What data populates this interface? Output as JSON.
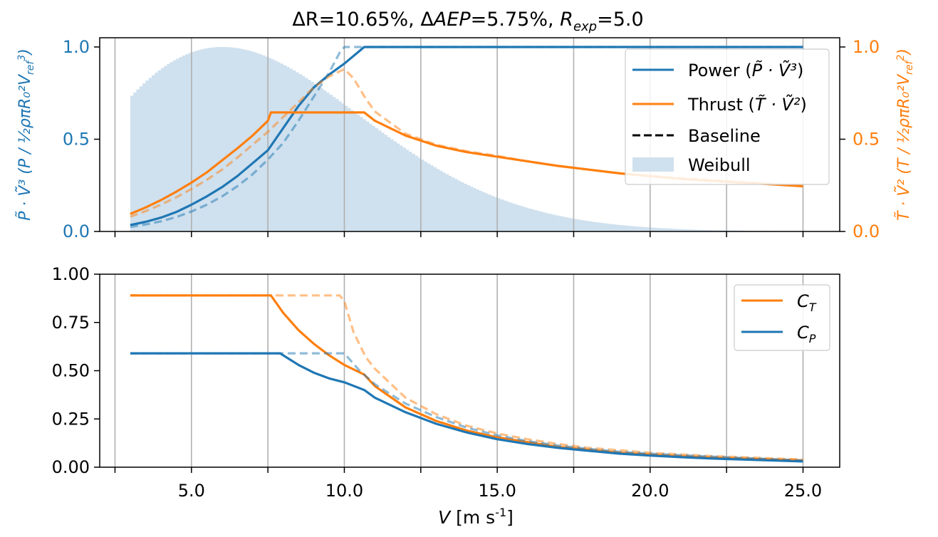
{
  "figure": {
    "title": {
      "delta_r_symbol": "ΔR",
      "delta_r_value": "=10.65%, ",
      "delta_aep_symbol": "Δ",
      "delta_aep_italic": "AEP",
      "delta_aep_value": "=5.75%, ",
      "rexp_base": "R",
      "rexp_sub": "exp",
      "rexp_value": "=5.0"
    },
    "xlabel_var": "V",
    "xlabel_unit": "[m s",
    "xlabel_exp": "-1",
    "xlabel_close": "]"
  },
  "colors": {
    "power": "#1f77b4",
    "thrust": "#ff7f0e",
    "weibull": "#cfe0ee",
    "grid": "#b0b0b0",
    "axis": "#000000"
  },
  "chart_data": [
    {
      "type": "line",
      "panel": "top",
      "ylabel_left": "P̃ · Ṽ³  (P / ½ρπR₀²V_ref³)",
      "ylabel_right": "T̃ · Ṽ²  (T / ½ρπR₀²V_ref²)",
      "xlim": [
        2.0,
        26.2
      ],
      "ylim": [
        0,
        1.05
      ],
      "xticks": [
        2.5,
        5.0,
        7.5,
        10.0,
        12.5,
        15.0,
        17.5,
        20.0,
        22.5,
        25.0
      ],
      "yticks_left": [
        "0.0",
        "0.5",
        "1.0"
      ],
      "yticks_right": [
        "0.0",
        "0.5",
        "1.0"
      ],
      "grid": "vertical",
      "legend_position": "top-right",
      "legend": [
        {
          "label_pre": "Power (",
          "label_math": "P̃ · Ṽ³",
          "label_post": ")",
          "style": "solid",
          "color_key": "power"
        },
        {
          "label_pre": "Thrust (",
          "label_math": "T̃ · Ṽ²",
          "label_post": ")",
          "style": "solid",
          "color_key": "thrust"
        },
        {
          "label_pre": "Baseline",
          "label_math": "",
          "label_post": "",
          "style": "dashed",
          "color_key": "axis"
        },
        {
          "label_pre": "Weibull",
          "label_math": "",
          "label_post": "",
          "style": "patch",
          "color_key": "weibull"
        }
      ],
      "weibull": {
        "shape_k": 2.0,
        "scale_lambda": 8.5,
        "x_range": [
          3.0,
          25.0
        ],
        "bins": 220
      },
      "series": [
        {
          "name": "Power (P̃·Ṽ³)",
          "color_key": "power",
          "style": "solid",
          "x": [
            3.0,
            3.5,
            4.0,
            4.5,
            5.0,
            5.5,
            6.0,
            6.5,
            7.0,
            7.5,
            8.0,
            8.5,
            9.0,
            9.5,
            10.0,
            10.65,
            12.0,
            15.0,
            20.0,
            25.0
          ],
          "y": [
            0.035,
            0.052,
            0.075,
            0.105,
            0.145,
            0.19,
            0.24,
            0.3,
            0.37,
            0.44,
            0.56,
            0.68,
            0.78,
            0.85,
            0.91,
            1.0,
            1.0,
            1.0,
            1.0,
            1.0
          ]
        },
        {
          "name": "Thrust (T̃·Ṽ²)",
          "color_key": "thrust",
          "style": "solid",
          "x": [
            3.0,
            3.5,
            4.0,
            4.5,
            5.0,
            5.5,
            6.0,
            6.5,
            7.0,
            7.5,
            7.6,
            8.0,
            9.0,
            10.0,
            10.65,
            11.0,
            12.0,
            13.0,
            14.0,
            15.0,
            16.0,
            17.0,
            18.0,
            19.0,
            20.0,
            21.0,
            22.0,
            23.0,
            24.0,
            25.0
          ],
          "y": [
            0.095,
            0.13,
            0.17,
            0.215,
            0.265,
            0.32,
            0.385,
            0.45,
            0.52,
            0.6,
            0.645,
            0.645,
            0.645,
            0.645,
            0.645,
            0.6,
            0.52,
            0.465,
            0.43,
            0.405,
            0.38,
            0.355,
            0.335,
            0.315,
            0.3,
            0.285,
            0.275,
            0.265,
            0.255,
            0.245
          ]
        },
        {
          "name": "Power baseline",
          "color_key": "power",
          "style": "dashed",
          "x": [
            3.0,
            3.5,
            4.0,
            4.5,
            5.0,
            5.5,
            6.0,
            6.5,
            7.0,
            7.5,
            8.0,
            8.5,
            9.0,
            9.5,
            9.85,
            10.0,
            12.0,
            25.0
          ],
          "y": [
            0.025,
            0.038,
            0.055,
            0.078,
            0.108,
            0.145,
            0.19,
            0.245,
            0.31,
            0.39,
            0.48,
            0.6,
            0.73,
            0.86,
            0.97,
            1.0,
            1.0,
            1.0
          ]
        },
        {
          "name": "Thrust baseline",
          "color_key": "thrust",
          "style": "dashed",
          "x": [
            3.0,
            3.5,
            4.0,
            4.5,
            5.0,
            5.5,
            6.0,
            6.5,
            7.0,
            7.5,
            8.0,
            8.5,
            9.0,
            9.5,
            10.0,
            10.3,
            10.7,
            11.0,
            12.0,
            13.0,
            14.0,
            15.0,
            16.0,
            17.0,
            18.0,
            19.0,
            20.0,
            22.0,
            25.0
          ],
          "y": [
            0.08,
            0.11,
            0.145,
            0.185,
            0.23,
            0.28,
            0.335,
            0.4,
            0.47,
            0.54,
            0.62,
            0.7,
            0.78,
            0.84,
            0.88,
            0.83,
            0.72,
            0.65,
            0.53,
            0.47,
            0.435,
            0.41,
            0.38,
            0.355,
            0.335,
            0.315,
            0.3,
            0.28,
            0.245
          ]
        }
      ]
    },
    {
      "type": "line",
      "panel": "bottom",
      "xlabel": "V [m s-1]",
      "xlim": [
        2.0,
        26.2
      ],
      "ylim": [
        0,
        1.0
      ],
      "xticks": [
        2.5,
        5.0,
        7.5,
        10.0,
        12.5,
        15.0,
        17.5,
        20.0,
        22.5,
        25.0
      ],
      "xtick_labels": [
        "5.0",
        "10.0",
        "15.0",
        "20.0",
        "25.0"
      ],
      "xtick_label_values": [
        5.0,
        10.0,
        15.0,
        20.0,
        25.0
      ],
      "yticks": [
        "0.00",
        "0.25",
        "0.50",
        "0.75",
        "1.00"
      ],
      "grid": "vertical",
      "legend_position": "top-right",
      "legend": [
        {
          "base": "C",
          "sub": "T",
          "color_key": "thrust"
        },
        {
          "base": "C",
          "sub": "P",
          "color_key": "power"
        }
      ],
      "series": [
        {
          "name": "C_T",
          "color_key": "thrust",
          "style": "solid",
          "x": [
            3.0,
            5.0,
            7.0,
            7.6,
            8.0,
            8.5,
            9.0,
            9.5,
            10.0,
            10.65,
            11.0,
            12.0,
            13.0,
            14.0,
            15.0,
            16.0,
            17.0,
            18.0,
            19.0,
            20.0,
            21.0,
            22.0,
            23.0,
            24.0,
            25.0
          ],
          "y": [
            0.89,
            0.89,
            0.89,
            0.89,
            0.8,
            0.71,
            0.64,
            0.58,
            0.53,
            0.48,
            0.42,
            0.31,
            0.24,
            0.19,
            0.155,
            0.13,
            0.105,
            0.09,
            0.075,
            0.065,
            0.057,
            0.05,
            0.045,
            0.04,
            0.035
          ]
        },
        {
          "name": "C_P",
          "color_key": "power",
          "style": "solid",
          "x": [
            3.0,
            5.0,
            7.0,
            7.9,
            8.5,
            9.0,
            9.5,
            10.0,
            10.65,
            11.0,
            12.0,
            13.0,
            14.0,
            15.0,
            16.0,
            17.0,
            18.0,
            19.0,
            20.0,
            21.0,
            22.0,
            23.0,
            24.0,
            25.0
          ],
          "y": [
            0.59,
            0.59,
            0.59,
            0.59,
            0.53,
            0.49,
            0.46,
            0.44,
            0.4,
            0.36,
            0.285,
            0.225,
            0.18,
            0.145,
            0.12,
            0.1,
            0.085,
            0.07,
            0.06,
            0.052,
            0.045,
            0.04,
            0.035,
            0.03
          ]
        },
        {
          "name": "C_T baseline",
          "color_key": "thrust",
          "style": "dashed",
          "x": [
            3.0,
            5.0,
            7.0,
            8.0,
            9.0,
            9.85,
            10.0,
            10.3,
            10.7,
            11.0,
            12.0,
            13.0,
            14.0,
            15.0,
            16.0,
            17.0,
            18.0,
            19.0,
            20.0,
            22.0,
            25.0
          ],
          "y": [
            0.89,
            0.89,
            0.89,
            0.89,
            0.89,
            0.89,
            0.86,
            0.7,
            0.57,
            0.51,
            0.36,
            0.275,
            0.215,
            0.175,
            0.145,
            0.12,
            0.1,
            0.088,
            0.075,
            0.058,
            0.04
          ]
        },
        {
          "name": "C_P baseline",
          "color_key": "power",
          "style": "dashed",
          "x": [
            3.0,
            5.0,
            7.0,
            8.0,
            9.0,
            10.0,
            10.5,
            11.0,
            12.0,
            13.0,
            14.0,
            15.0,
            16.0,
            17.0,
            18.0,
            19.0,
            20.0,
            22.0,
            25.0
          ],
          "y": [
            0.59,
            0.59,
            0.59,
            0.59,
            0.59,
            0.59,
            0.5,
            0.43,
            0.33,
            0.26,
            0.205,
            0.165,
            0.135,
            0.112,
            0.095,
            0.08,
            0.07,
            0.055,
            0.035
          ]
        }
      ]
    }
  ]
}
